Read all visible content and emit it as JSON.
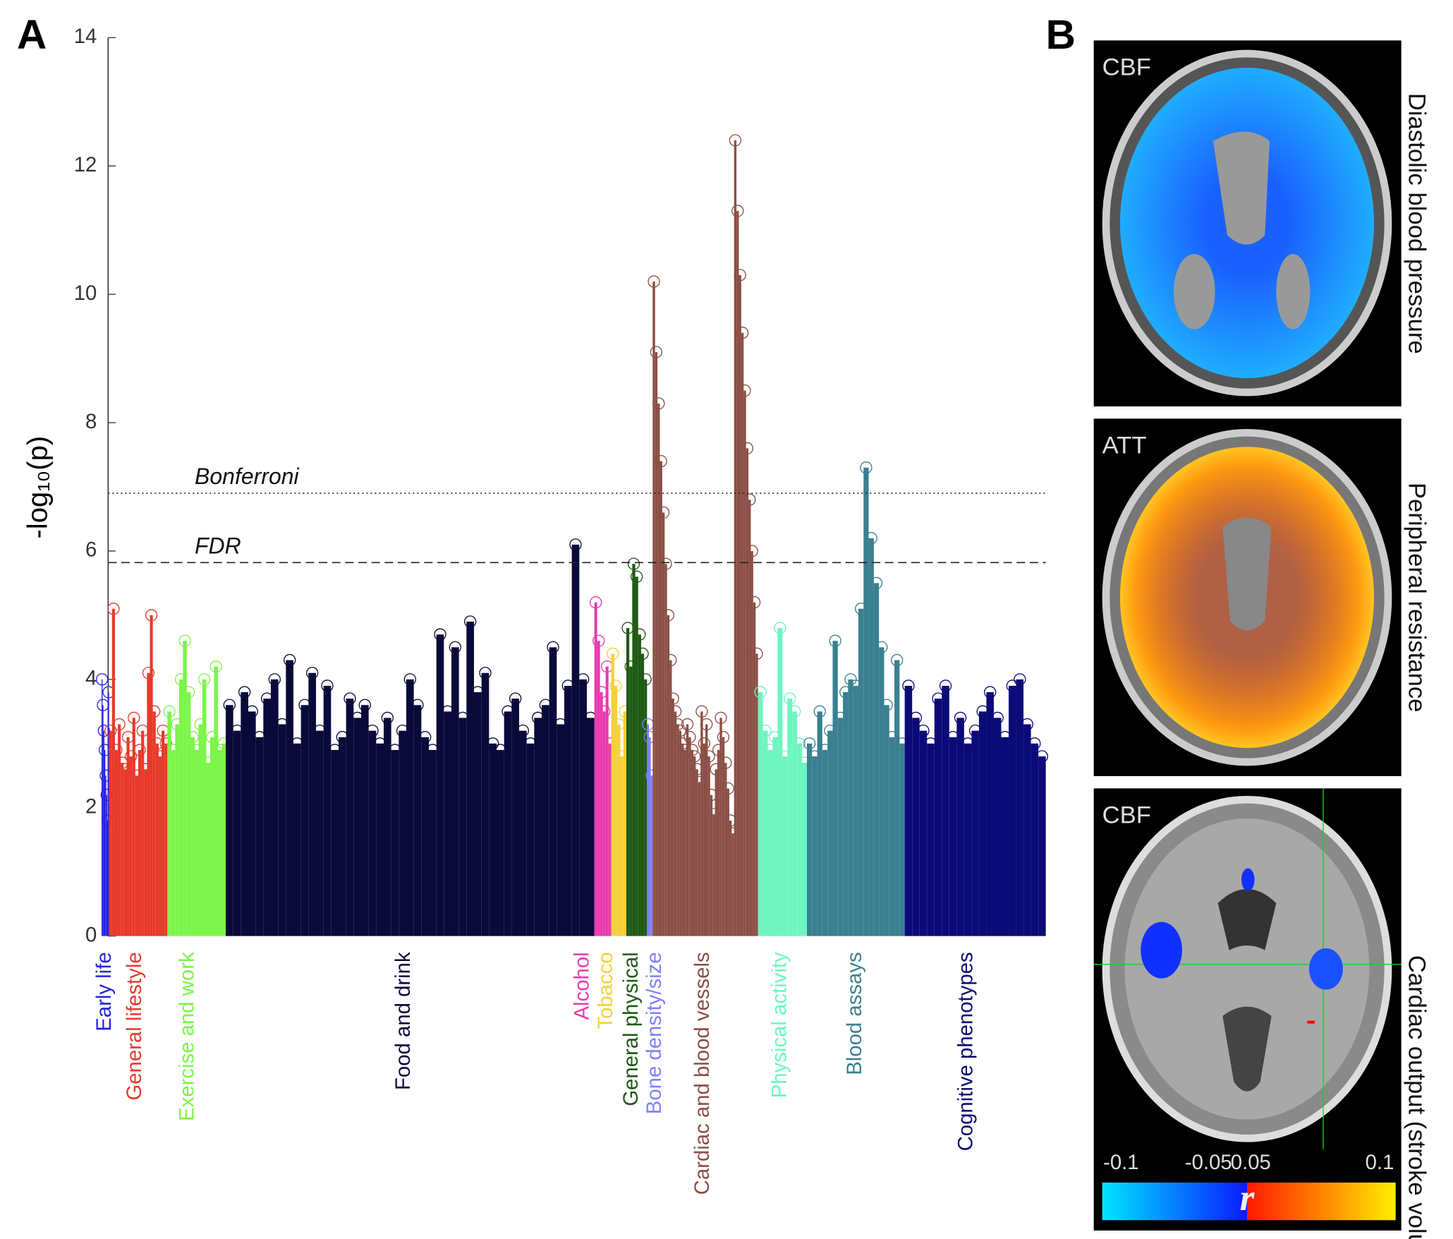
{
  "panel_labels": [
    "A",
    "B"
  ],
  "chart_data": {
    "type": "manhattan",
    "ylabel": "-log₁₀(p)",
    "ylim": [
      0,
      14
    ],
    "yticks": [
      0,
      2,
      4,
      6,
      8,
      10,
      12,
      14
    ],
    "thresholds": [
      {
        "name": "Bonferroni",
        "value": 6.9
      },
      {
        "name": "FDR",
        "value": 5.82
      }
    ],
    "series": [
      {
        "name": "Early life",
        "color": "#2222e0",
        "values": [
          4.0,
          3.6,
          3.2,
          2.9,
          2.5,
          2.2,
          1.8,
          3.8
        ]
      },
      {
        "name": "General lifestyle",
        "color": "#e8392a",
        "values": [
          3.2,
          5.1,
          2.9,
          3.3,
          2.7,
          2.6,
          3.1,
          2.8,
          3.4,
          2.5,
          2.9,
          3.2,
          2.6,
          4.1,
          5.0,
          3.5,
          3.0,
          2.8,
          3.2,
          3.0
        ]
      },
      {
        "name": "Exercise and work",
        "color": "#7cf54b",
        "values": [
          3.5,
          2.9,
          3.3,
          4.0,
          4.6,
          3.8,
          3.1,
          2.9,
          3.3,
          4.0,
          2.7,
          3.1,
          4.2,
          2.9,
          3.0
        ]
      },
      {
        "name": "Food and drink",
        "color": "#0a0a3a",
        "values": [
          3.6,
          3.2,
          3.8,
          3.5,
          3.1,
          3.7,
          4.0,
          3.3,
          4.3,
          3.0,
          3.6,
          4.1,
          3.2,
          3.9,
          2.9,
          3.1,
          3.7,
          3.4,
          3.6,
          3.2,
          3.0,
          3.4,
          2.9,
          3.2,
          4.0,
          3.6,
          3.1,
          2.9,
          4.7,
          3.5,
          4.5,
          3.4,
          4.9,
          3.8,
          4.1,
          3.0,
          2.9,
          3.5,
          3.7,
          3.2,
          3.0,
          3.4,
          3.6,
          4.5,
          3.3,
          3.9,
          6.1,
          4.0,
          3.4
        ]
      },
      {
        "name": "Alcohol",
        "color": "#e83ab0",
        "values": [
          5.2,
          4.6,
          3.8,
          3.5,
          4.2,
          3.0
        ]
      },
      {
        "name": "Tobacco",
        "color": "#f5d03a",
        "values": [
          4.4,
          3.9,
          3.3,
          2.8,
          3.5
        ]
      },
      {
        "name": "General physical",
        "color": "#1e5a14",
        "values": [
          4.8,
          4.2,
          5.8,
          5.6,
          4.7,
          4.4,
          4.0
        ]
      },
      {
        "name": "Bone density/size",
        "color": "#8080ff",
        "values": [
          3.3,
          3.1,
          2.5
        ]
      },
      {
        "name": "Cardiac and blood vessels",
        "color": "#8b4f45",
        "values": [
          10.2,
          9.1,
          8.3,
          7.4,
          6.6,
          5.8,
          5.0,
          4.3,
          3.7,
          3.5,
          3.3,
          3.2,
          3.0,
          2.9,
          3.3,
          3.1,
          2.9,
          2.8,
          2.6,
          2.4,
          3.5,
          3.0,
          3.3,
          2.8,
          2.2,
          1.9,
          2.6,
          2.9,
          3.4,
          3.1,
          2.7,
          2.3,
          1.8,
          1.6,
          12.4,
          11.3,
          10.3,
          9.4,
          8.5,
          7.6,
          6.8,
          6.0,
          5.2,
          4.4
        ]
      },
      {
        "name": "Physical activity",
        "color": "#6ef5c0",
        "values": [
          3.8,
          3.2,
          2.9,
          3.1,
          4.8,
          2.8,
          3.7,
          3.5,
          3.0,
          2.7
        ]
      },
      {
        "name": "Blood assays",
        "color": "#3a8090",
        "values": [
          3.0,
          2.8,
          3.5,
          2.9,
          3.2,
          4.6,
          3.4,
          3.8,
          4.0,
          3.9,
          5.1,
          7.3,
          6.2,
          5.5,
          4.5,
          3.6,
          3.1,
          4.3,
          3.0
        ]
      },
      {
        "name": "Cognitive phenotypes",
        "color": "#0a0a78",
        "values": [
          3.9,
          3.4,
          3.2,
          3.0,
          3.7,
          3.9,
          3.1,
          3.4,
          3.0,
          3.2,
          3.5,
          3.8,
          3.4,
          3.1,
          3.9,
          4.0,
          3.3,
          3.0,
          2.8
        ]
      }
    ]
  },
  "brain_maps": {
    "panels": [
      {
        "label": "CBF",
        "side": "Diastolic blood pressure"
      },
      {
        "label": "ATT",
        "side": "Peripheral resistance"
      },
      {
        "label": "CBF",
        "side": "Cardiac output (stroke volume)"
      }
    ],
    "colorbar": {
      "ticks": [
        -0.1,
        -0.05,
        0.05,
        0.1
      ],
      "label": "r"
    }
  }
}
